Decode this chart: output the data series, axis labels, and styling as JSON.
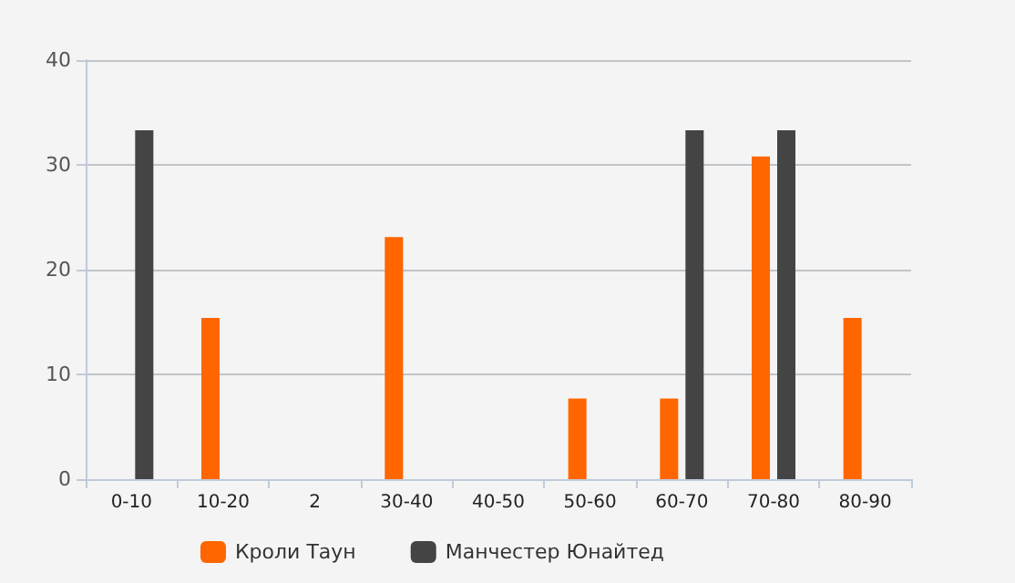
{
  "chart_data": {
    "type": "bar",
    "categories": [
      "0-10",
      "10-20",
      "2",
      "30-40",
      "40-50",
      "50-60",
      "60-70",
      "70-80",
      "80-90"
    ],
    "series": [
      {
        "name": "Кроли Таун",
        "color": "#ff6600",
        "values": [
          null,
          15.4,
          null,
          23.1,
          null,
          7.7,
          7.7,
          30.8,
          15.4
        ]
      },
      {
        "name": "Манчестер Юнайтед",
        "color": "#444444",
        "values": [
          33.3,
          null,
          null,
          null,
          null,
          null,
          33.3,
          33.3,
          null
        ]
      }
    ],
    "ylim": [
      0,
      40
    ],
    "yticks": [
      0,
      10,
      20,
      30,
      40
    ],
    "grid": "y",
    "legend": "bottom"
  }
}
